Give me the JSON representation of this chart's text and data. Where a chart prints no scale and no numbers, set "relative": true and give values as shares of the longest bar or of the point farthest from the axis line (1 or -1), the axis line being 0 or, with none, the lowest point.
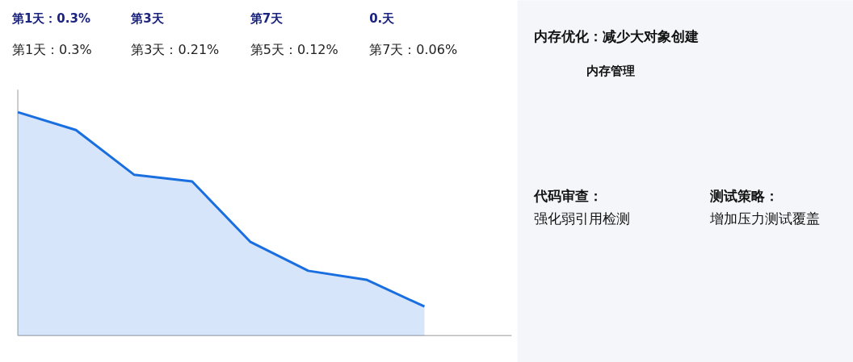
{
  "chart_data": [
    {
      "type": "area",
      "relative": true,
      "categories": [
        null,
        null,
        null,
        null,
        null,
        null,
        null,
        null
      ],
      "series": [
        {
          "color": "#1a6fe0",
          "values": [
            1,
            0.92,
            0.72,
            0.69,
            0.42,
            0.29,
            0.25,
            0.13
          ]
        }
      ],
      "annotations": [
        "第1天：0.3%",
        "第3天",
        "第7天",
        "0.天",
        "第1天：0.3%",
        "第3天：0.21%",
        "第5天：0.12%",
        "第7天：0.06%"
      ]
    },
    {
      "type": "other",
      "annotations": [
        "内存优化：减少大对象创建",
        "内存管理",
        "代码审查：",
        "强化弱引用检测",
        "测试策略：",
        "增加压力测试覆盖"
      ]
    }
  ]
}
